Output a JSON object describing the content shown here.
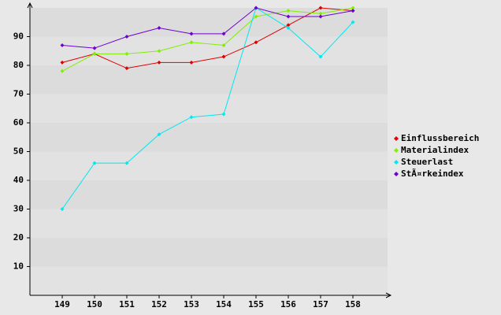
{
  "chart_data": {
    "type": "line",
    "categories": [
      "149",
      "150",
      "151",
      "152",
      "153",
      "154",
      "155",
      "156",
      "157",
      "158"
    ],
    "series": [
      {
        "name": "Einflussbereich",
        "color": "#e00000",
        "values": [
          81,
          84,
          79,
          81,
          81,
          83,
          88,
          94,
          100,
          99
        ]
      },
      {
        "name": "Materialindex",
        "color": "#80f000",
        "values": [
          78,
          84,
          84,
          85,
          88,
          87,
          97,
          99,
          98,
          100
        ]
      },
      {
        "name": "Steuerlast",
        "color": "#00e8f0",
        "values": [
          30,
          46,
          46,
          56,
          62,
          63,
          100,
          93,
          83,
          95
        ]
      },
      {
        "name": "StÃ¤rkeindex",
        "color": "#7000d0",
        "values": [
          87,
          86,
          90,
          93,
          91,
          91,
          100,
          97,
          97,
          99
        ]
      }
    ],
    "ylim": [
      0,
      100
    ],
    "yticks": [
      10,
      20,
      30,
      40,
      50,
      60,
      70,
      80,
      90
    ],
    "grid": true,
    "legend": "right"
  }
}
